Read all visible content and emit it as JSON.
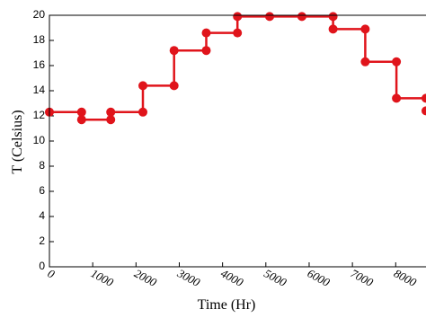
{
  "chart_data": {
    "type": "line",
    "step": true,
    "xlabel": "Time (Hr)",
    "ylabel": "T (Celsius)",
    "xlim": [
      0,
      8700
    ],
    "ylim": [
      0,
      20
    ],
    "x_ticks": [
      0,
      1000,
      2000,
      3000,
      4000,
      5000,
      6000,
      7000,
      8000
    ],
    "x_tick_labels": [
      "0",
      "1000",
      "2000",
      "3000",
      "4000",
      "5000",
      "6000",
      "7000",
      "8000"
    ],
    "y_ticks": [
      0,
      2,
      4,
      6,
      8,
      10,
      12,
      14,
      16,
      18,
      20
    ],
    "y_tick_labels": [
      "0",
      "2",
      "4",
      "6",
      "8",
      "10",
      "12",
      "14",
      "16",
      "18",
      "20"
    ],
    "grid": false,
    "legend": "none",
    "series": [
      {
        "color": "#e0141b",
        "x": [
          0,
          744,
          744,
          1416,
          1416,
          2160,
          2160,
          2880,
          2880,
          3624,
          3624,
          4344,
          4344,
          5088,
          5832,
          6552,
          6552,
          7296,
          7296,
          8016,
          8016,
          8700
        ],
        "y": [
          12.3,
          12.3,
          11.7,
          11.7,
          12.3,
          12.3,
          14.4,
          14.4,
          17.2,
          17.2,
          18.6,
          18.6,
          19.9,
          19.9,
          19.9,
          19.9,
          18.9,
          18.9,
          16.3,
          16.3,
          13.4,
          13.4
        ]
      }
    ],
    "markers_x": [
      0,
      744,
      744,
      1416,
      1416,
      2160,
      2160,
      2880,
      2880,
      3624,
      3624,
      4344,
      4344,
      5088,
      5832,
      6552,
      6552,
      7296,
      7296,
      8016,
      8016,
      8700,
      8700
    ],
    "markers_y": [
      12.3,
      12.3,
      11.7,
      11.7,
      12.3,
      12.3,
      14.4,
      14.4,
      17.2,
      17.2,
      18.6,
      18.6,
      19.9,
      19.9,
      19.9,
      19.9,
      18.9,
      18.9,
      16.3,
      16.3,
      13.4,
      13.4,
      12.4
    ]
  }
}
